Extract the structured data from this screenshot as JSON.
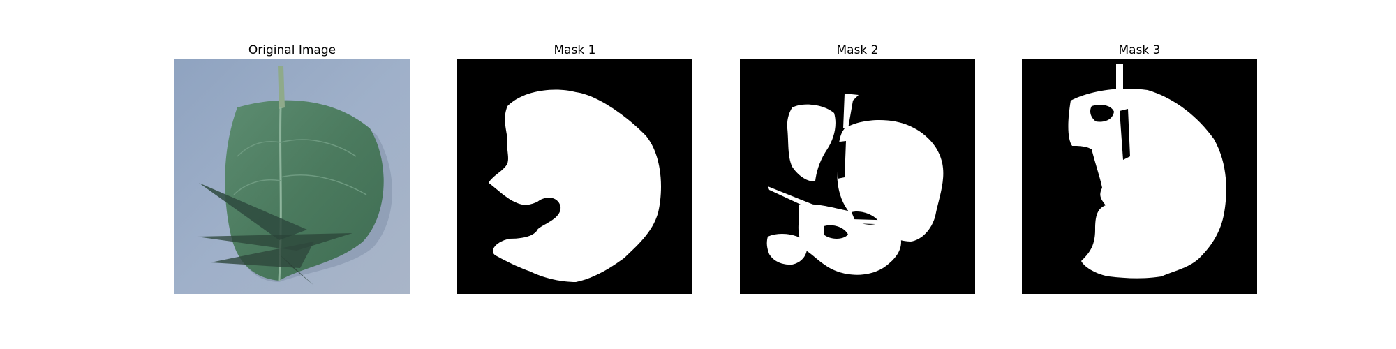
{
  "figure": {
    "panels": [
      {
        "title": "Original Image"
      },
      {
        "title": "Mask 1"
      },
      {
        "title": "Mask 2"
      },
      {
        "title": "Mask 3"
      }
    ]
  },
  "colors": {
    "mask_background": "#000000",
    "mask_foreground": "#ffffff",
    "photo_background": "#98a9c3",
    "leaf_green": "#4f7d62"
  }
}
